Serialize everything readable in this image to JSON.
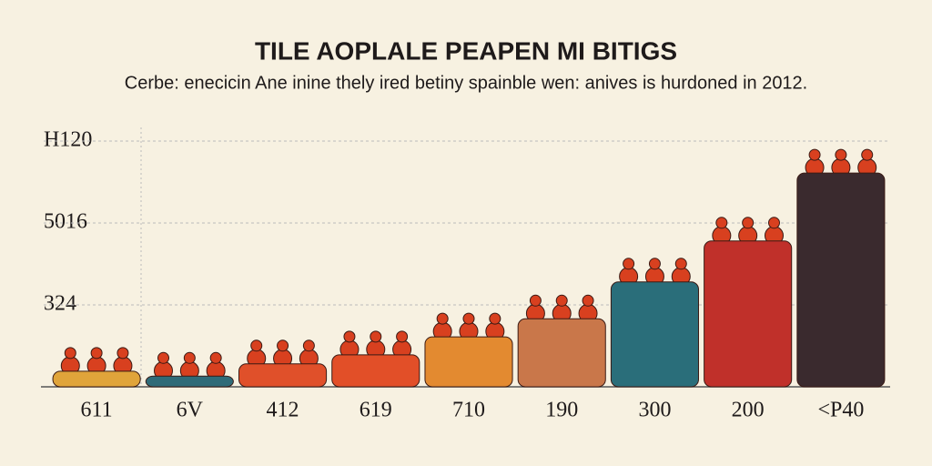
{
  "chart_data": {
    "type": "bar",
    "title": "TILE AOPLALE PEAPEN MI BITIGS",
    "subtitle": "Cerbe: enecicin Ane inine thely ired betiny spainble wen: anives is hurdoned in 2012.",
    "categories": [
      "611",
      "6V",
      "412",
      "619",
      "710",
      "190",
      "300",
      "200",
      "<P40"
    ],
    "values": [
      0.19,
      0.13,
      0.28,
      0.39,
      0.61,
      0.83,
      1.28,
      1.78,
      2.61
    ],
    "colors": [
      "#e0a43a",
      "#2f6b78",
      "#e0502a",
      "#e24f28",
      "#e38a30",
      "#c9774a",
      "#2a6e7a",
      "#c0302a",
      "#3a2a2e"
    ],
    "ylim": [
      0,
      3.2
    ],
    "yticks": [
      {
        "value": 1,
        "label": "324"
      },
      {
        "value": 2,
        "label": "5016"
      },
      {
        "value": 3,
        "label": "H120"
      }
    ],
    "grid": true
  }
}
